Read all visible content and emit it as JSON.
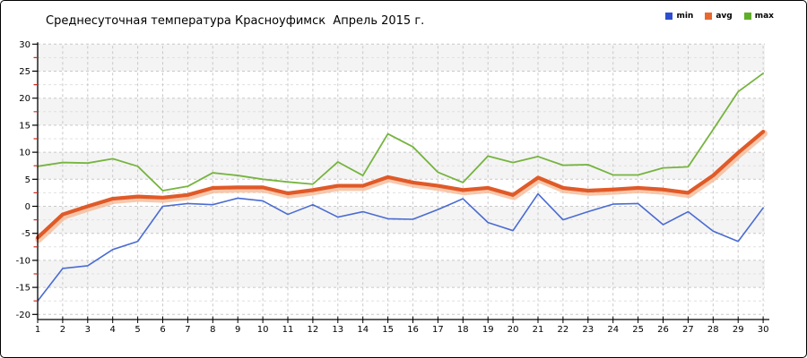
{
  "title": "Среднесуточная температура Красноуфимск  Апрель 2015 г.",
  "legend": {
    "position": "top-right",
    "items": [
      {
        "label": "min",
        "color": "#2d4ecf"
      },
      {
        "label": "avg",
        "color": "#e8692f"
      },
      {
        "label": "max",
        "color": "#5fae28"
      }
    ]
  },
  "chart_data": {
    "type": "line",
    "title": "Среднесуточная температура Красноуфимск  Апрель 2015 г.",
    "xlabel": "",
    "ylabel": "",
    "x": [
      1,
      2,
      3,
      4,
      5,
      6,
      7,
      8,
      9,
      10,
      11,
      12,
      13,
      14,
      15,
      16,
      17,
      18,
      19,
      20,
      21,
      22,
      23,
      24,
      25,
      26,
      27,
      28,
      29,
      30
    ],
    "xlim": [
      1,
      30
    ],
    "ylim": [
      -20,
      30
    ],
    "ytick_step": 5,
    "ytick_minor_step": 2.5,
    "grid": "dashed",
    "legend_position": "top-right",
    "series": [
      {
        "name": "min",
        "color": "#4a6bd2",
        "width": 1.6,
        "values": [
          -17.5,
          -11.5,
          -11,
          -8,
          -6.5,
          0,
          0.5,
          0.3,
          1.5,
          1,
          -1.5,
          0.3,
          -2,
          -1,
          -2.3,
          -2.4,
          -0.6,
          1.4,
          -3,
          -4.5,
          2.3,
          -2.5,
          -1,
          0.4,
          0.5,
          -3.4,
          -1,
          -4.6,
          -6.5,
          -0.3
        ]
      },
      {
        "name": "avg",
        "color": "#e05a28",
        "halo": "#f5b590",
        "width": 4.2,
        "values": [
          -5.8,
          -1.5,
          0,
          1.4,
          1.8,
          1.6,
          2.1,
          3.4,
          3.5,
          3.5,
          2.4,
          3,
          3.8,
          3.8,
          5.4,
          4.4,
          3.8,
          3,
          3.4,
          2.1,
          5.3,
          3.4,
          2.9,
          3.1,
          3.4,
          3.1,
          2.5,
          5.7,
          9.9,
          13.8
        ]
      },
      {
        "name": "max",
        "color": "#76b43f",
        "width": 1.8,
        "values": [
          7.4,
          8.1,
          8,
          8.8,
          7.4,
          2.9,
          3.7,
          6.2,
          5.7,
          5,
          4.5,
          4.1,
          8.2,
          5.7,
          13.4,
          11,
          6.3,
          4.4,
          9.3,
          8.1,
          9.2,
          7.6,
          7.7,
          5.8,
          5.8,
          7.1,
          7.3,
          14.2,
          21.2,
          24.6
        ]
      }
    ]
  },
  "colors": {
    "band_gray": "#f4f4f4",
    "grid_major": "#c8c8c8",
    "grid_minor": "#e0e0e0",
    "axis": "#000000",
    "minor_tick_red": "#cc2a1e",
    "tick_label": "#000000"
  }
}
